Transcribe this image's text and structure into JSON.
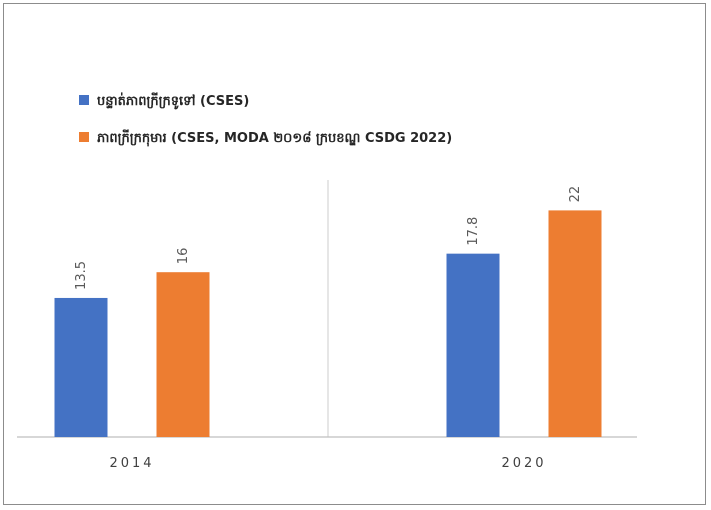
{
  "chart_data": {
    "type": "bar",
    "categories": [
      "2014",
      "2020"
    ],
    "series": [
      {
        "name": "បន្ទាត់ភាពក្រីក្រទូទៅ (CSES)",
        "values": [
          13.5,
          17.8
        ],
        "color": "#4472c4"
      },
      {
        "name": "ភាពក្រីក្រកុមារ (CSES, MODA ២០១៨ ក្របខណ្ឌ CSDG 2022)",
        "values": [
          16,
          22
        ],
        "color": "#ed7d31"
      }
    ],
    "ylim": [
      0,
      24
    ],
    "grid": false,
    "legend_position": "top-left",
    "data_labels": true,
    "data_label_rotation": -90
  }
}
